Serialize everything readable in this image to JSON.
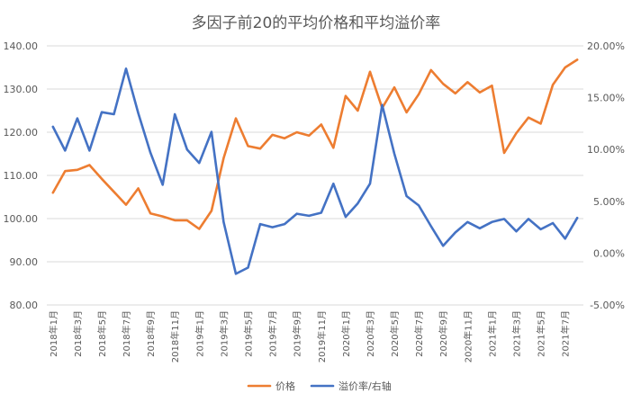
{
  "chart_data": {
    "type": "line",
    "title": "多因子前20的平均价格和平均溢价率",
    "x": [
      "2018年1月",
      "2018年2月",
      "2018年3月",
      "2018年4月",
      "2018年5月",
      "2018年6月",
      "2018年7月",
      "2018年8月",
      "2018年9月",
      "2018年10月",
      "2018年11月",
      "2018年12月",
      "2019年1月",
      "2019年2月",
      "2019年3月",
      "2019年4月",
      "2019年5月",
      "2019年6月",
      "2019年7月",
      "2019年8月",
      "2019年9月",
      "2019年10月",
      "2019年11月",
      "2019年12月",
      "2020年1月",
      "2020年2月",
      "2020年3月",
      "2020年4月",
      "2020年5月",
      "2020年6月",
      "2020年7月",
      "2020年8月",
      "2020年9月",
      "2020年10月",
      "2020年11月",
      "2020年12月",
      "2021年1月",
      "2021年2月",
      "2021年3月",
      "2021年4月",
      "2021年5月",
      "2021年6月",
      "2021年7月",
      "2021年8月"
    ],
    "x_tick_labels": [
      "2018年1月",
      "2018年3月",
      "2018年5月",
      "2018年7月",
      "2018年9月",
      "2018年11月",
      "2019年1月",
      "2019年3月",
      "2019年5月",
      "2019年7月",
      "2019年9月",
      "2019年11月",
      "2020年1月",
      "2020年3月",
      "2020年5月",
      "2020年7月",
      "2020年9月",
      "2020年11月",
      "2021年1月",
      "2021年3月",
      "2021年5月",
      "2021年7月"
    ],
    "y_left": {
      "min": 80,
      "max": 140,
      "step": 10,
      "tick_labels": [
        "80.00",
        "90.00",
        "100.00",
        "110.00",
        "120.00",
        "130.00",
        "140.00"
      ]
    },
    "y_right": {
      "min": -0.05,
      "max": 0.2,
      "step": 0.05,
      "tick_labels": [
        "-5.00%",
        "0.00%",
        "5.00%",
        "10.00%",
        "15.00%",
        "20.00%"
      ]
    },
    "grid": "horizontal",
    "legend_position": "bottom",
    "series": [
      {
        "name": "价格",
        "axis": "left",
        "color": "#ED7D31",
        "values": [
          106.0,
          111.0,
          111.3,
          112.4,
          109.2,
          106.2,
          103.2,
          107.0,
          101.2,
          100.5,
          99.6,
          99.6,
          97.6,
          101.8,
          114.0,
          123.2,
          116.8,
          116.2,
          119.4,
          118.6,
          120.0,
          119.2,
          121.8,
          116.4,
          128.4,
          125.0,
          134.0,
          125.6,
          130.4,
          124.6,
          128.8,
          134.4,
          131.2,
          129.0,
          131.6,
          129.2,
          130.8,
          115.2,
          119.8,
          123.4,
          122.0,
          131.0,
          135.0,
          136.8
        ]
      },
      {
        "name": "溢价率/右轴",
        "axis": "right",
        "color": "#4472C4",
        "values": [
          0.122,
          0.099,
          0.13,
          0.099,
          0.136,
          0.134,
          0.178,
          0.135,
          0.097,
          0.066,
          0.134,
          0.1,
          0.087,
          0.117,
          0.03,
          -0.02,
          -0.014,
          0.028,
          0.025,
          0.028,
          0.038,
          0.036,
          0.039,
          0.067,
          0.035,
          0.048,
          0.067,
          0.143,
          0.096,
          0.055,
          0.046,
          0.026,
          0.007,
          0.02,
          0.03,
          0.024,
          0.03,
          0.033,
          0.021,
          0.033,
          0.023,
          0.029,
          0.014,
          0.034
        ]
      }
    ]
  }
}
